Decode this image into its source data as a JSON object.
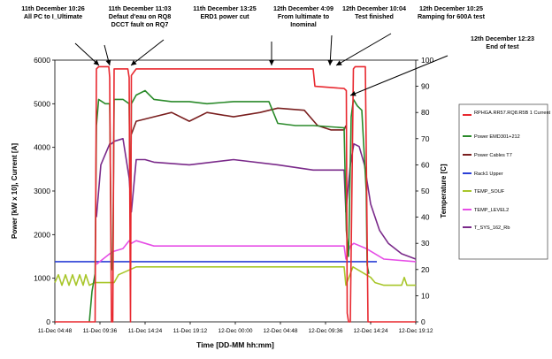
{
  "chart_data": {
    "type": "line",
    "xlabel": "Time [DD-MM hh:mm]",
    "ylabel": "Power [kW x 10], Current [A]",
    "y2label": "Temperature [C]",
    "ylim": [
      0,
      6000
    ],
    "y2lim": [
      0,
      100
    ],
    "yticks": [
      0,
      1000,
      2000,
      3000,
      4000,
      5000,
      6000
    ],
    "y2ticks": [
      0,
      10,
      20,
      30,
      40,
      50,
      60,
      70,
      80,
      90,
      100
    ],
    "xlim": [
      "11-Dec 04:48",
      "12-Dec 21:36"
    ],
    "xticks": [
      "11-Dec 04:48",
      "11-Dec 09:36",
      "11-Dec 14:24",
      "11-Dec 19:12",
      "12-Dec 00:00",
      "12-Dec 04:48",
      "12-Dec 09:36",
      "12-Dec 14:24",
      "12-Dec 19:12"
    ],
    "grid": false,
    "legend_position": "right",
    "legend": [
      "RPHGA.RR57.RQ8.R5B 1 Current",
      "Power EMD301+212",
      "Power Cables T7",
      "Rack1 Upper",
      "TEMP_SOUF",
      "TEMP_LEVEL2",
      "T_SYS_162_Rb"
    ],
    "colors": {
      "RPHGA.RR57.RQ8.R5B 1 Current": "#e8282f",
      "Power EMD301+212": "#2a8a2a",
      "Power Cables T7": "#7a1f1f",
      "Rack1 Upper": "#2a3fd6",
      "TEMP_SOUF": "#a8c62a",
      "TEMP_LEVEL2": "#e64ee6",
      "T_SYS_162_Rb": "#7a2a8a"
    },
    "series": [
      {
        "name": "RPHGA.RR57.RQ8.R5B 1 Current",
        "axis": "left",
        "x": [
          4.8,
          8.0,
          9.0,
          9.35,
          9.5,
          9.75,
          10.9,
          11.0,
          11.2,
          11.35,
          11.5,
          13.05,
          13.2,
          13.35,
          13.45,
          14.0,
          20,
          30,
          34.0,
          34.2,
          37.5,
          37.75,
          37.85,
          38.0,
          38.2,
          38.55,
          38.75,
          39.9,
          40.05,
          40.2,
          40.5,
          45.6
        ],
        "y": [
          0,
          0,
          0,
          0,
          5800,
          5850,
          5850,
          5600,
          0,
          0,
          5800,
          5800,
          5600,
          0,
          5650,
          5800,
          5800,
          5800,
          5800,
          5400,
          5350,
          5300,
          200,
          0,
          0,
          5800,
          5850,
          5850,
          3000,
          0,
          0,
          0
        ]
      },
      {
        "name": "Power EMD301+212",
        "axis": "left",
        "x": [
          8.7,
          9.0,
          9.35,
          9.5,
          9.75,
          10.5,
          11.0,
          11.2,
          11.35,
          11.5,
          12.5,
          13.2,
          13.35,
          13.45,
          14.0,
          15.0,
          16.0,
          18.0,
          20.0,
          22.0,
          25.0,
          29.0,
          30.0,
          32.0,
          34.0,
          37.5,
          37.75,
          38.0,
          38.3,
          38.55,
          39.0,
          39.5,
          40.0,
          40.1,
          40.3
        ],
        "y": [
          0,
          700,
          1100,
          4500,
          5100,
          5000,
          5000,
          1200,
          1200,
          5100,
          5100,
          5000,
          1700,
          5000,
          5200,
          5300,
          5100,
          5050,
          5050,
          5000,
          5050,
          5050,
          4550,
          4500,
          4500,
          4450,
          2100,
          1500,
          4700,
          5100,
          4950,
          4850,
          3000,
          1300,
          1100
        ]
      },
      {
        "name": "Power Cables T7",
        "axis": "left",
        "x": [
          13.45,
          14.0,
          16.0,
          18.0,
          20.0,
          22.0,
          25.0,
          28.0,
          30.0,
          33.0,
          34.5,
          36.0,
          37.5,
          37.7
        ],
        "y": [
          4300,
          4600,
          4700,
          4800,
          4600,
          4800,
          4700,
          4800,
          4900,
          4850,
          4500,
          4400,
          4400,
          4500
        ]
      },
      {
        "name": "Rack1 Upper",
        "axis": "right",
        "x": [
          4.8,
          40.0,
          41.2
        ],
        "y": [
          23,
          23,
          23
        ]
      },
      {
        "name": "TEMP_SOUF",
        "axis": "right",
        "x": [
          4.8,
          5.2,
          5.6,
          6.0,
          6.4,
          6.8,
          7.2,
          7.6,
          8.0,
          8.3,
          8.7,
          9.3,
          9.6,
          11.5,
          12.0,
          14.0,
          20.0,
          30.0,
          37.5,
          37.7,
          38.5,
          40.5,
          41.0,
          42.0,
          44.0,
          44.3,
          44.6,
          45.6
        ],
        "y": [
          15,
          18,
          14,
          18,
          14,
          18,
          14,
          18,
          14,
          18,
          14,
          15,
          15,
          15,
          18,
          21,
          21,
          21,
          21,
          14,
          21,
          17,
          15,
          14,
          14,
          17,
          14,
          14
        ]
      },
      {
        "name": "TEMP_LEVEL2",
        "axis": "right",
        "x": [
          9.5,
          11.0,
          11.5,
          12.5,
          13.2,
          13.45,
          14.0,
          15.0,
          16.0,
          20.0,
          30.0,
          37.5,
          37.7,
          38.2,
          38.6,
          40.0,
          42.0,
          45.6
        ],
        "y": [
          22,
          26,
          27,
          28,
          31,
          30,
          31,
          30,
          29,
          29,
          29,
          29,
          24,
          29,
          30,
          28,
          24,
          23
        ]
      },
      {
        "name": "T_SYS_162_Rb",
        "axis": "right",
        "x": [
          9.5,
          10.0,
          11.0,
          11.2,
          11.5,
          12.5,
          13.2,
          13.45,
          14.0,
          15.0,
          16.0,
          20.0,
          25.0,
          30.0,
          34.0,
          37.5,
          37.7,
          38.2,
          38.6,
          39.2,
          39.8,
          40.5,
          41.5,
          42.5,
          44.0,
          45.6
        ],
        "y": [
          40,
          60,
          68,
          68,
          69,
          70,
          55,
          42,
          62,
          62,
          61,
          60,
          62,
          60,
          58,
          58,
          42,
          60,
          68,
          67,
          60,
          45,
          35,
          30,
          26,
          24
        ]
      }
    ],
    "annotations": [
      {
        "text": "11th December 10:26\nAll PC to I_Ultimate",
        "x": 10.43
      },
      {
        "text": "11th December 11:03\nDefaut d'eau on RQ8\nDCCT fault on RQ7",
        "x": 11.05
      },
      {
        "text": "11th December 13:25\nERD1 power cut",
        "x": 13.42
      },
      {
        "text": "12th December 4:09\nFrom Iultimate to\nInominal",
        "x": 28.15
      },
      {
        "text": "12th December 10:04\nTest finished",
        "x": 34.07
      },
      {
        "text": "12th December 10:25\nRamping for 600A test",
        "x": 34.42
      },
      {
        "text": "12th December 12:23\nEnd of test",
        "x": 36.38
      }
    ]
  }
}
